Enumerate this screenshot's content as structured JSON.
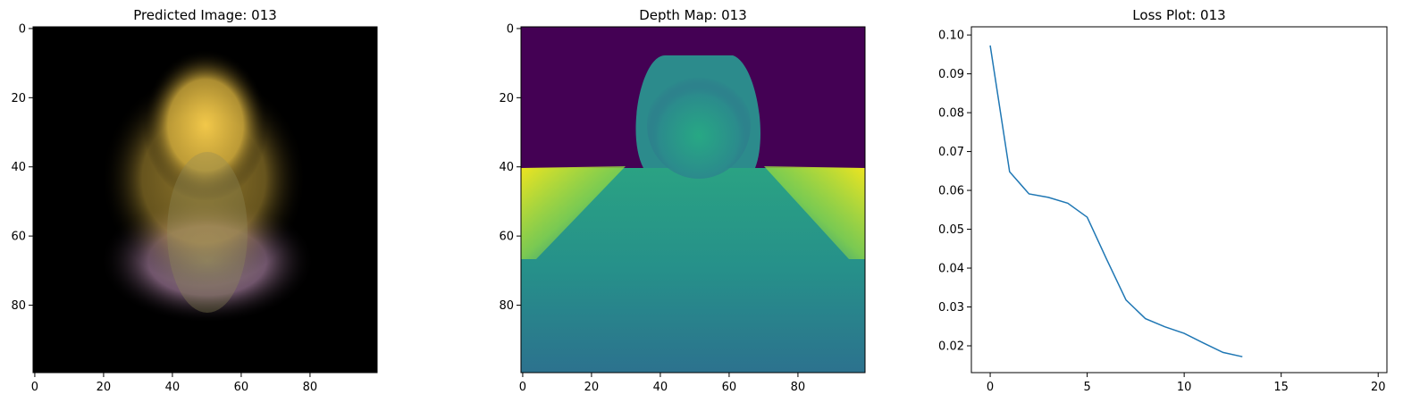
{
  "chart_data": [
    {
      "type": "image",
      "title": "Predicted Image: 013",
      "xlim": [
        -0.5,
        99.5
      ],
      "xticks": [
        0,
        20,
        40,
        60,
        80
      ],
      "ylim": [
        99.5,
        -0.5
      ],
      "yticks": [
        0,
        20,
        40,
        60,
        80
      ]
    },
    {
      "type": "image",
      "title": "Depth Map: 013",
      "xlim": [
        -0.5,
        99.5
      ],
      "xticks": [
        0,
        20,
        40,
        60,
        80
      ],
      "ylim": [
        99.5,
        -0.5
      ],
      "yticks": [
        0,
        20,
        40,
        60,
        80
      ]
    },
    {
      "type": "line",
      "title": "Loss Plot: 013",
      "color": "#1f77b4",
      "x": [
        0,
        1,
        2,
        3,
        4,
        5,
        6,
        7,
        8,
        9,
        10,
        11,
        12,
        13
      ],
      "values": [
        0.0973,
        0.0648,
        0.0591,
        0.0582,
        0.0567,
        0.0531,
        0.0423,
        0.0318,
        0.027,
        0.0249,
        0.0232,
        0.0207,
        0.0183,
        0.0172
      ],
      "xlim": [
        -0.97,
        20.45
      ],
      "xticks": [
        0,
        5,
        10,
        15,
        20
      ],
      "ylim": [
        0.0131,
        0.1021
      ],
      "yticks": [
        0.02,
        0.03,
        0.04,
        0.05,
        0.06,
        0.07,
        0.08,
        0.09,
        {
          "value": 0.1,
          "label": "0.10"
        }
      ]
    }
  ]
}
